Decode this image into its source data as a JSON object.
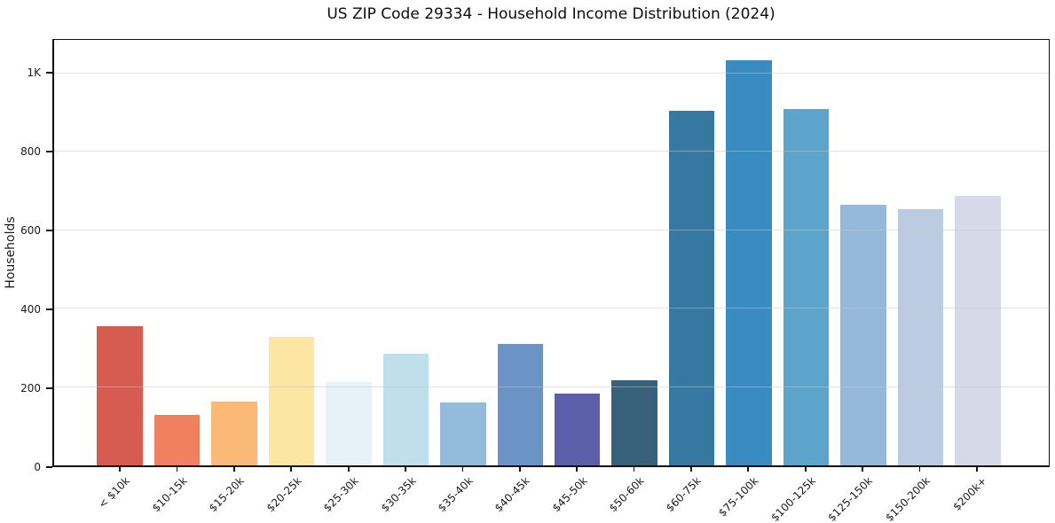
{
  "figure": {
    "background": "#ffffff"
  },
  "chart_data": {
    "type": "bar",
    "title": "US ZIP Code 29334 - Household Income Distribution (2024)",
    "xlabel": "",
    "ylabel": "Households",
    "categories": [
      "< $10k",
      "$10-15k",
      "$15-20k",
      "$20-25k",
      "$25-30k",
      "$30-35k",
      "$35-40k",
      "$40-45k",
      "$45-50k",
      "$50-60k",
      "$60-75k",
      "$75-100k",
      "$100-125k",
      "$125-150k",
      "$150-200k",
      "$200k+"
    ],
    "values": [
      355,
      129,
      162,
      329,
      212,
      286,
      160,
      311,
      183,
      218,
      906,
      1033,
      910,
      665,
      654,
      688
    ],
    "bar_colors": [
      "#d65c51",
      "#ef8160",
      "#fbb977",
      "#fde6a3",
      "#e6f2f7",
      "#bedfeb",
      "#92bcd9",
      "#6a93c6",
      "#5b5ea9",
      "#37617a",
      "#36789f",
      "#3a8bc0",
      "#5ca4ca",
      "#95b9d8",
      "#bdcbe0",
      "#d6d9e7"
    ],
    "ylim": [
      0,
      1086
    ],
    "yticks": [
      {
        "value": 0,
        "label": "0"
      },
      {
        "value": 200,
        "label": "200"
      },
      {
        "value": 400,
        "label": "400"
      },
      {
        "value": 600,
        "label": "600"
      },
      {
        "value": 800,
        "label": "800"
      },
      {
        "value": 1000,
        "label": "1K"
      }
    ],
    "grid": "horizontal",
    "legend": "none",
    "bar_width_fraction": 0.8,
    "x_tick_label_rotation_deg": 45
  }
}
